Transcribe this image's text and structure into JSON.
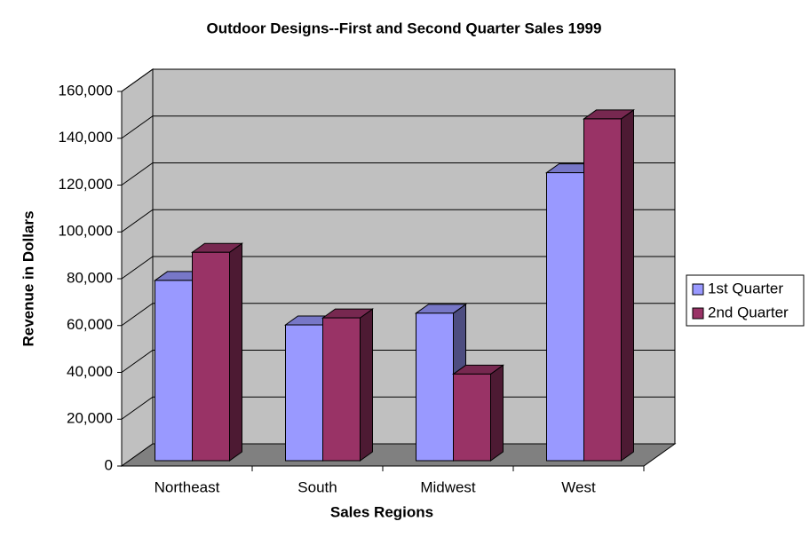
{
  "chart_data": {
    "type": "bar3d",
    "title": "Outdoor Designs--First and Second Quarter Sales 1999",
    "x_label": "Sales Regions",
    "y_label": "Revenue in Dollars",
    "categories": [
      "Northeast",
      "South",
      "Midwest",
      "West"
    ],
    "series": [
      {
        "name": "1st Quarter",
        "color": "#9999ff",
        "values": [
          77000,
          58000,
          63000,
          123000
        ]
      },
      {
        "name": "2nd Quarter",
        "color": "#993366",
        "values": [
          89000,
          61000,
          37000,
          146000
        ]
      }
    ],
    "ylim": [
      0,
      160000
    ],
    "yticks": [
      0,
      {
        "value": 20000,
        "label": "20,000"
      },
      {
        "value": 40000,
        "label": "40,000"
      },
      {
        "value": 60000,
        "label": "60,000"
      },
      {
        "value": 80000,
        "label": "80,000"
      },
      {
        "value": 100000,
        "label": "100,000"
      },
      {
        "value": 120000,
        "label": "120,000"
      },
      {
        "value": 140000,
        "label": "140,000"
      },
      {
        "value": 160000,
        "label": "160,000"
      }
    ],
    "grid": true,
    "legend": "right"
  }
}
